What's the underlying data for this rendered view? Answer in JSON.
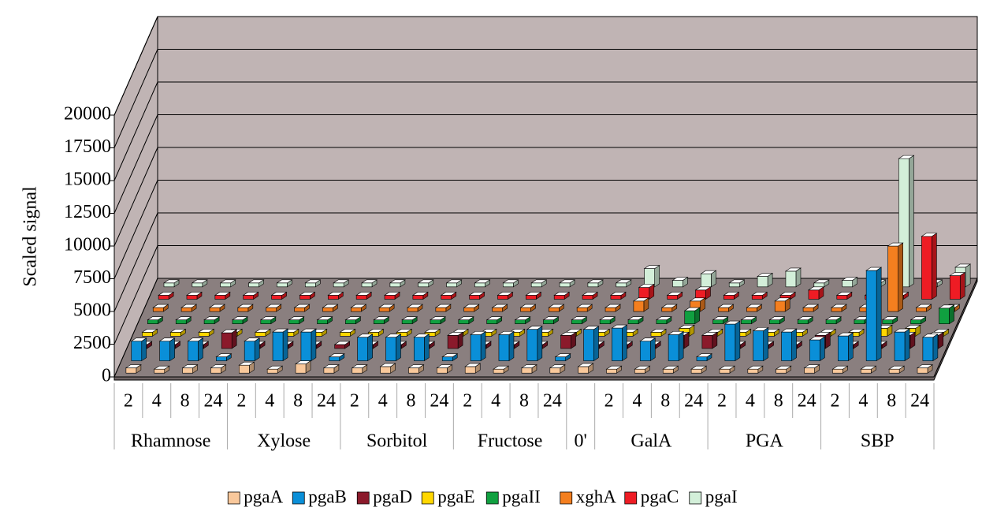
{
  "chart_data": {
    "type": "bar3d",
    "y_label": "Scaled signal",
    "groups": [
      {
        "label": "Rhamnose",
        "categories": [
          "2",
          "4",
          "8",
          "24"
        ]
      },
      {
        "label": "Xylose",
        "categories": [
          "2",
          "4",
          "8",
          "24"
        ]
      },
      {
        "label": "Sorbitol",
        "categories": [
          "2",
          "4",
          "8",
          "24"
        ]
      },
      {
        "label": "Fructose",
        "categories": [
          "2",
          "4",
          "8",
          "24"
        ]
      },
      {
        "label": "0'",
        "categories": [
          null
        ]
      },
      {
        "label": "GalA",
        "categories": [
          "2",
          "4",
          "8",
          "24"
        ]
      },
      {
        "label": "PGA",
        "categories": [
          "2",
          "4",
          "8",
          "24"
        ]
      },
      {
        "label": "SBP",
        "categories": [
          "2",
          "4",
          "8",
          "24"
        ]
      }
    ],
    "series": [
      {
        "name": "pgaA",
        "color": "#f9c89b",
        "values": [
          400,
          300,
          400,
          400,
          600,
          300,
          700,
          400,
          400,
          500,
          400,
          400,
          500,
          300,
          400,
          400,
          500,
          300,
          300,
          300,
          300,
          300,
          300,
          300,
          400,
          300,
          300,
          300,
          400
        ]
      },
      {
        "name": "pgaB",
        "color": "#0a8fd8",
        "values": [
          1500,
          1500,
          1500,
          300,
          1500,
          2200,
          2200,
          300,
          1800,
          1800,
          1800,
          300,
          2000,
          2000,
          2400,
          300,
          2400,
          2500,
          1500,
          2000,
          300,
          2800,
          2300,
          2200,
          1600,
          1900,
          6900,
          2200,
          1800
        ]
      },
      {
        "name": "pgaD",
        "color": "#8b1a2b",
        "values": [
          300,
          300,
          300,
          1200,
          300,
          300,
          300,
          300,
          300,
          300,
          300,
          1000,
          300,
          300,
          300,
          1000,
          300,
          300,
          300,
          1000,
          1000,
          300,
          300,
          300,
          1000,
          300,
          300,
          1000,
          1000
        ]
      },
      {
        "name": "pgaE",
        "color": "#ffd700",
        "values": [
          300,
          300,
          300,
          300,
          300,
          300,
          300,
          300,
          300,
          300,
          300,
          300,
          300,
          300,
          300,
          300,
          300,
          300,
          300,
          600,
          300,
          300,
          300,
          300,
          300,
          300,
          600,
          600,
          300
        ]
      },
      {
        "name": "pgaII",
        "color": "#10a040",
        "values": [
          300,
          300,
          300,
          300,
          300,
          300,
          300,
          300,
          300,
          300,
          300,
          300,
          300,
          300,
          300,
          300,
          300,
          300,
          300,
          1000,
          300,
          300,
          300,
          300,
          300,
          300,
          300,
          300,
          1200
        ]
      },
      {
        "name": "xghA",
        "color": "#f47f1f",
        "values": [
          300,
          300,
          300,
          300,
          300,
          300,
          300,
          300,
          300,
          300,
          300,
          300,
          300,
          300,
          300,
          300,
          300,
          800,
          300,
          800,
          300,
          300,
          800,
          300,
          300,
          300,
          5000,
          300,
          300
        ]
      },
      {
        "name": "pgaC",
        "color": "#ee1c24",
        "values": [
          300,
          300,
          300,
          300,
          300,
          300,
          300,
          300,
          300,
          300,
          300,
          300,
          300,
          300,
          300,
          300,
          300,
          900,
          300,
          700,
          300,
          300,
          300,
          700,
          300,
          300,
          300,
          4800,
          1800
        ]
      },
      {
        "name": "pgaI",
        "color": "#d3efd9",
        "values": [
          300,
          300,
          300,
          300,
          300,
          300,
          300,
          300,
          300,
          300,
          300,
          300,
          300,
          300,
          300,
          300,
          300,
          1400,
          500,
          1000,
          300,
          800,
          1200,
          300,
          500,
          300,
          9800,
          300,
          1500
        ]
      }
    ],
    "ylim": [
      0,
      20000
    ],
    "yticks": [
      0,
      2500,
      5000,
      7500,
      10000,
      12500,
      15000,
      17500,
      20000
    ],
    "grid": true
  }
}
